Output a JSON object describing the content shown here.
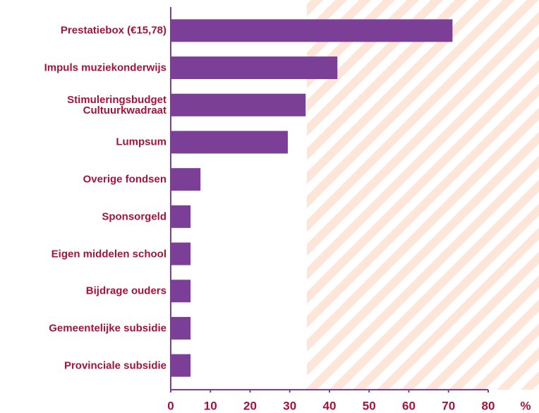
{
  "chart_data": {
    "type": "barh",
    "categories": [
      "Prestatiebox (€15,78)",
      "Impuls muziekonderwijs",
      "Stimuleringsbudget Cultuurkwadraat",
      "Lumpsum",
      "Overige fondsen",
      "Sponsorgeld",
      "Eigen middelen school",
      "Bijdrage ouders",
      "Gemeentelijke subsidie",
      "Provinciale subsidie"
    ],
    "values": [
      71,
      42,
      34,
      29.5,
      7.5,
      5,
      5,
      5,
      5,
      5
    ],
    "color": "#7b3f98",
    "xlim": [
      0,
      80
    ],
    "xticks": [
      0,
      10,
      20,
      30,
      40,
      50,
      60,
      70,
      80
    ],
    "xlabel": "%",
    "grid": false
  }
}
